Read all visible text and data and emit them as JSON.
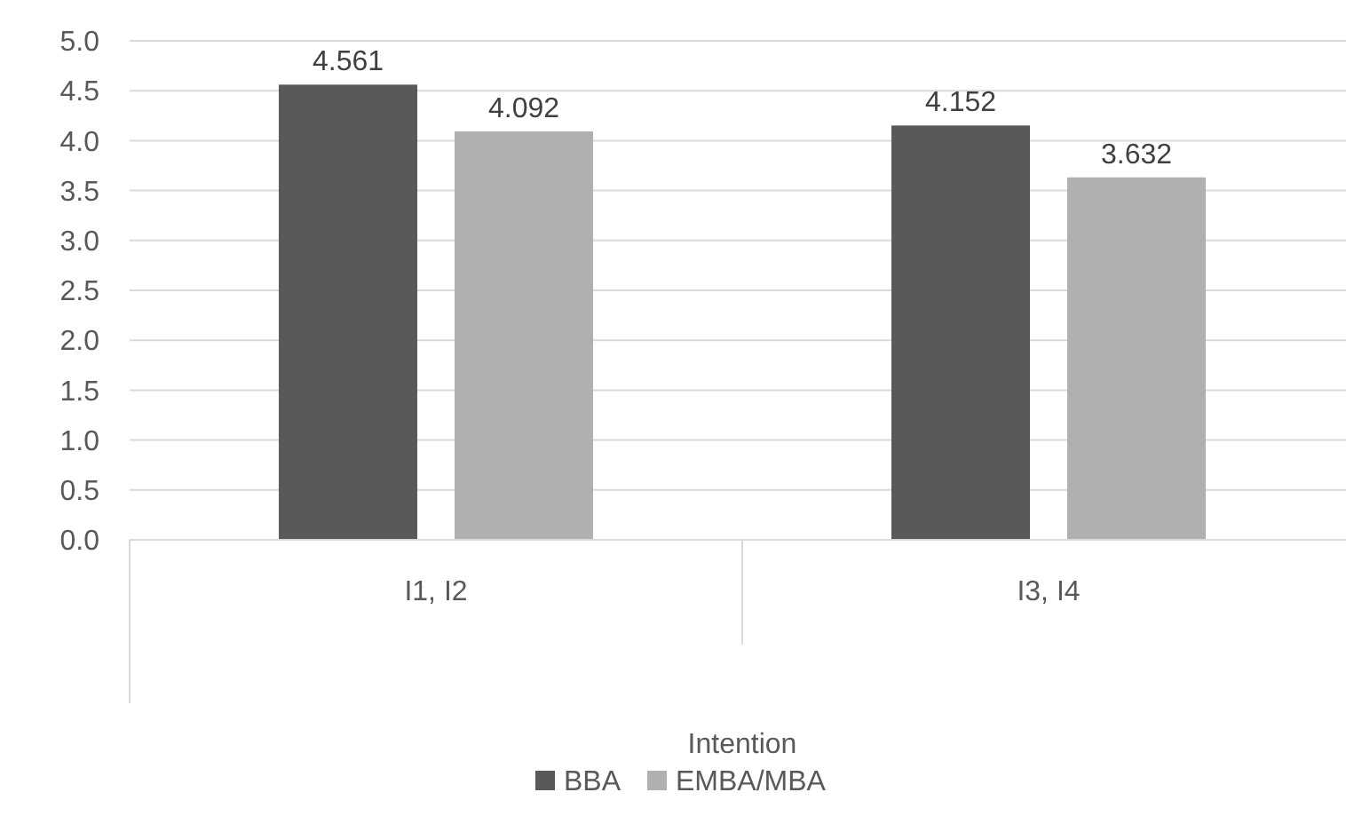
{
  "chart_data": {
    "type": "bar",
    "xlabel": "Intention",
    "categories": [
      "I1, I2",
      "I3, I4"
    ],
    "series": [
      {
        "name": "BBA",
        "color": "#595959",
        "values": [
          4.561,
          4.152
        ]
      },
      {
        "name": "EMBA/MBA",
        "color": "#b0b0b0",
        "values": [
          4.092,
          3.632
        ]
      }
    ],
    "ylim": [
      0,
      5
    ],
    "yticks": [
      {
        "value": 0,
        "label": "0.0"
      },
      {
        "value": 0.5,
        "label": "0.5"
      },
      {
        "value": 1,
        "label": "1.0"
      },
      {
        "value": 1.5,
        "label": "1.5"
      },
      {
        "value": 2,
        "label": "2.0"
      },
      {
        "value": 2.5,
        "label": "2.5"
      },
      {
        "value": 3,
        "label": "3.0"
      },
      {
        "value": 3.5,
        "label": "3.5"
      },
      {
        "value": 4,
        "label": "4.0"
      },
      {
        "value": 4.5,
        "label": "4.5"
      },
      {
        "value": 5,
        "label": "5.0"
      }
    ],
    "grid": "y",
    "legend": "bottom",
    "data_labels": true
  }
}
